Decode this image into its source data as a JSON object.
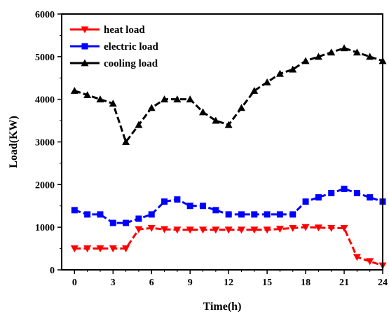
{
  "chart_data": {
    "type": "line",
    "xlabel": "Time(h)",
    "ylabel": "Load(KW)",
    "xlim": [
      -1,
      24
    ],
    "ylim": [
      0,
      6000
    ],
    "xticks": [
      0,
      3,
      6,
      9,
      12,
      15,
      18,
      21,
      24
    ],
    "yticks": [
      0,
      1000,
      2000,
      3000,
      4000,
      5000,
      6000
    ],
    "legend_position": "top-left",
    "grid": false,
    "x": [
      0,
      1,
      2,
      3,
      4,
      5,
      6,
      7,
      8,
      9,
      10,
      11,
      12,
      13,
      14,
      15,
      16,
      17,
      18,
      19,
      20,
      21,
      22,
      23,
      24
    ],
    "series": [
      {
        "name": "heat load",
        "color": "#ff0000",
        "marker": "triangle-down",
        "values": [
          500,
          500,
          500,
          500,
          500,
          950,
          980,
          950,
          940,
          940,
          940,
          940,
          940,
          940,
          940,
          940,
          960,
          980,
          1000,
          990,
          980,
          980,
          300,
          200,
          100
        ]
      },
      {
        "name": "electric load",
        "color": "#0000ff",
        "marker": "square",
        "values": [
          1400,
          1300,
          1300,
          1100,
          1100,
          1200,
          1300,
          1600,
          1650,
          1500,
          1500,
          1400,
          1300,
          1300,
          1300,
          1300,
          1300,
          1300,
          1600,
          1700,
          1800,
          1900,
          1800,
          1700,
          1600
        ]
      },
      {
        "name": "cooling load",
        "color": "#000000",
        "marker": "triangle-up",
        "values": [
          4200,
          4100,
          4000,
          3900,
          3000,
          3400,
          3800,
          4000,
          4000,
          4000,
          3700,
          3500,
          3400,
          3800,
          4200,
          4400,
          4600,
          4700,
          4900,
          5000,
          5100,
          5200,
          5100,
          5000,
          4900
        ]
      }
    ]
  }
}
